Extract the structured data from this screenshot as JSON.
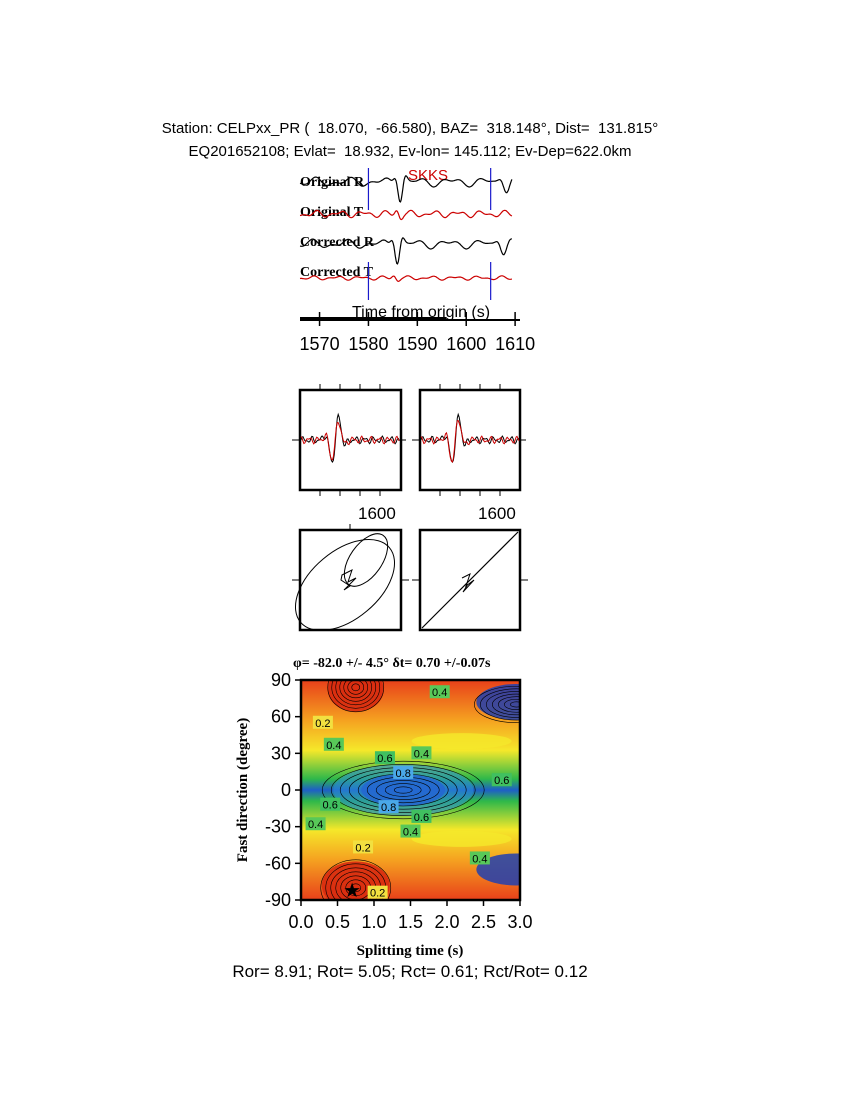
{
  "header": {
    "line1": "Station: CELPxx_PR (  18.070,  -66.580), BAZ=  318.148°, Dist=  131.815°",
    "line2": "EQ201652108; Evlat=  18.932, Ev-lon= 145.112; Ev-Dep=622.0km"
  },
  "colors": {
    "radial": "#000000",
    "transverse": "#cc0000",
    "window_marker": "#1a1acc",
    "phase": "#cc0000"
  },
  "chart_data": [
    {
      "type": "line",
      "panel": "waveforms",
      "phase_label": "SKKS",
      "xlabel": "Time from origin (s)",
      "xlim": [
        1566,
        1611
      ],
      "x_ticks": [
        1570,
        1580,
        1590,
        1600,
        1610
      ],
      "window_markers": [
        1580,
        1605
      ],
      "series": [
        {
          "name": "Original R",
          "component": "radial"
        },
        {
          "name": "Original T",
          "component": "transverse"
        },
        {
          "name": "Corrected R",
          "component": "radial"
        },
        {
          "name": "Corrected T",
          "component": "transverse"
        }
      ]
    },
    {
      "type": "line",
      "panel": "fast-slow-waveforms",
      "x_ticks": [
        1600
      ],
      "subplots": [
        "before",
        "after"
      ]
    },
    {
      "type": "scatter",
      "panel": "particle-motion",
      "subplots": [
        "before",
        "after"
      ]
    },
    {
      "type": "heatmap",
      "panel": "energy-grid",
      "title": "φ= -82.0 +/- 4.5° δt= 0.70 +/-0.07s",
      "xlabel": "Splitting time (s)",
      "ylabel": "Fast direction (degree)",
      "xlim": [
        0,
        3
      ],
      "ylim": [
        -90,
        90
      ],
      "x_ticks": [
        "0.0",
        "0.5",
        "1.0",
        "1.5",
        "2.0",
        "2.5",
        "3.0"
      ],
      "y_ticks": [
        "90",
        "60",
        "30",
        "0",
        "-30",
        "-60",
        "-90"
      ],
      "best_fit": {
        "phi": -82.0,
        "dt": 0.7
      },
      "contour_labels": [
        {
          "text": "0.2",
          "dt": 0.3,
          "phi": 55
        },
        {
          "text": "0.4",
          "dt": 1.9,
          "phi": 80
        },
        {
          "text": "0.4",
          "dt": 0.45,
          "phi": 37
        },
        {
          "text": "0.6",
          "dt": 1.15,
          "phi": 26
        },
        {
          "text": "0.4",
          "dt": 1.65,
          "phi": 30
        },
        {
          "text": "0.8",
          "dt": 1.4,
          "phi": 14
        },
        {
          "text": "0.6",
          "dt": 2.75,
          "phi": 8
        },
        {
          "text": "0.6",
          "dt": 0.4,
          "phi": -12
        },
        {
          "text": "0.8",
          "dt": 1.2,
          "phi": -14
        },
        {
          "text": "0.6",
          "dt": 1.65,
          "phi": -22
        },
        {
          "text": "0.4",
          "dt": 1.5,
          "phi": -34
        },
        {
          "text": "0.4",
          "dt": 0.2,
          "phi": -28
        },
        {
          "text": "0.2",
          "dt": 0.85,
          "phi": -47
        },
        {
          "text": "0.4",
          "dt": 2.45,
          "phi": -56
        },
        {
          "text": "0.2",
          "dt": 1.05,
          "phi": -84
        }
      ]
    }
  ],
  "footer": {
    "text": "Ror= 8.91; Rot= 5.05; Rct= 0.61; Rct/Rot= 0.12"
  }
}
